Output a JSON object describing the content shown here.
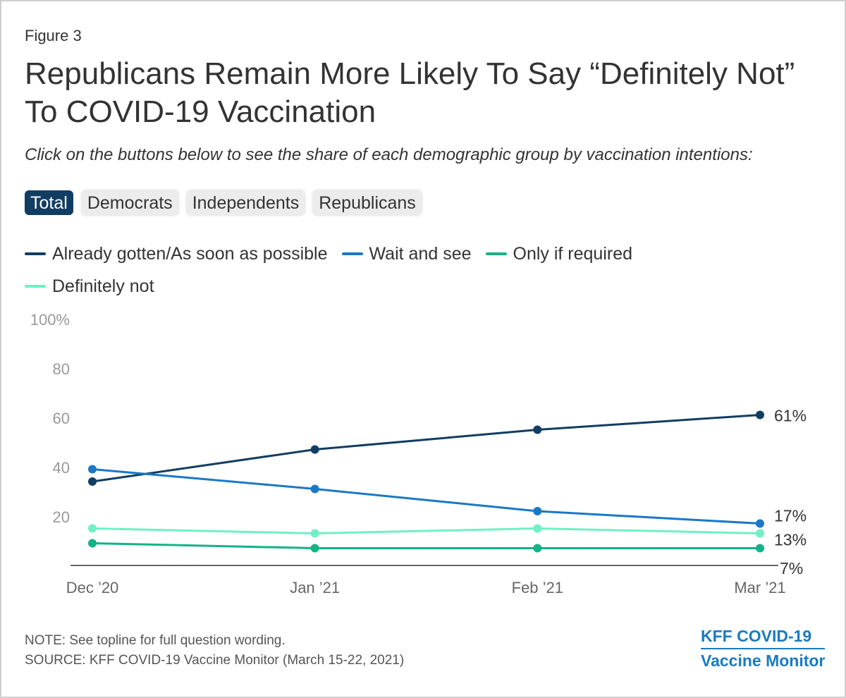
{
  "figure_label": "Figure 3",
  "title": "Republicans Remain More Likely To Say “Definitely Not” To COVID-19 Vaccination",
  "subtitle": "Click on the buttons below to see the share of each demographic group by vaccination intentions:",
  "buttons": [
    {
      "label": "Total",
      "active": true
    },
    {
      "label": "Democrats",
      "active": false
    },
    {
      "label": "Independents",
      "active": false
    },
    {
      "label": "Republicans",
      "active": false
    }
  ],
  "note": "NOTE: See topline for full question wording.",
  "source": "SOURCE: KFF COVID-19 Vaccine Monitor (March 15-22, 2021)",
  "brand": {
    "line1": "KFF COVID-19",
    "line2": "Vaccine Monitor",
    "color": "#1a7bc1"
  },
  "chart_data": {
    "type": "line",
    "x": [
      "Dec ’20",
      "Jan ’21",
      "Feb ’21",
      "Mar ’21"
    ],
    "ylim": [
      0,
      100
    ],
    "yticks": [
      20,
      40,
      60,
      80,
      100
    ],
    "ytick_labels": [
      "20",
      "40",
      "60",
      "80",
      "100%"
    ],
    "grid": false,
    "legend_position": "top-left",
    "series": [
      {
        "name": "Already gotten/As soon as possible",
        "color": "#123d63",
        "values": [
          34,
          47,
          55,
          61
        ],
        "end_label": "61%"
      },
      {
        "name": "Wait and see",
        "color": "#1a78c7",
        "values": [
          39,
          31,
          22,
          17
        ],
        "end_label": "17%"
      },
      {
        "name": "Only if required",
        "color": "#12b387",
        "values": [
          9,
          7,
          7,
          7
        ],
        "end_label": "7%"
      },
      {
        "name": "Definitely not",
        "color": "#6ff0c6",
        "values": [
          15,
          13,
          15,
          13
        ],
        "end_label": "13%"
      }
    ]
  }
}
